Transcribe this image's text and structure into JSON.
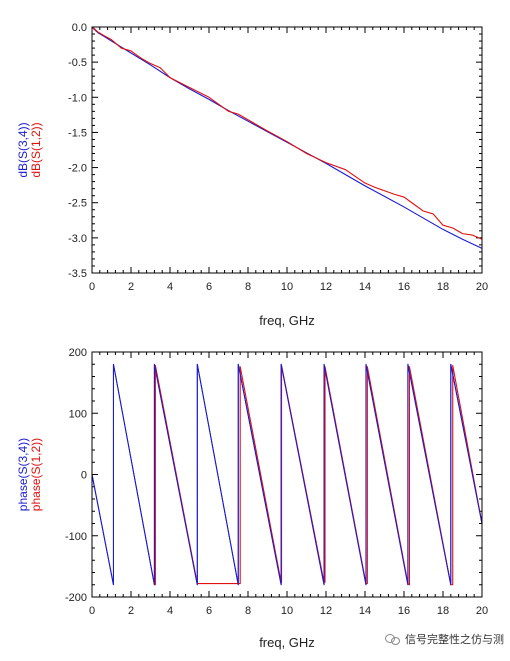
{
  "watermark": "信号完整性之仿与测",
  "colors": {
    "blue": "#1a1ad0",
    "red": "#e01010",
    "axis": "#000000"
  },
  "chart_data": [
    {
      "type": "line",
      "xlabel": "freq, GHz",
      "ylabel_parts": [
        "dB(S(3,4))",
        "dB(S(1,2))"
      ],
      "xlim": [
        0,
        20
      ],
      "ylim": [
        -3.5,
        0.0
      ],
      "xticks": [
        0,
        2,
        4,
        6,
        8,
        10,
        12,
        14,
        16,
        18,
        20
      ],
      "yticks": [
        0.0,
        -0.5,
        -1.0,
        -1.5,
        -2.0,
        -2.5,
        -3.0,
        -3.5
      ],
      "ytick_labels": [
        "0.0",
        "-0.5",
        "-1.0",
        "-1.5",
        "-2.0",
        "-2.5",
        "-3.0",
        "-3.5"
      ],
      "series": [
        {
          "name": "dB(S(3,4))",
          "color": "#1a1ad0",
          "x": [
            0,
            0.1,
            0.3,
            0.6,
            1,
            2,
            3,
            4,
            5,
            6,
            7,
            8,
            9,
            10,
            11,
            12,
            13,
            14,
            15,
            16,
            17,
            18,
            19,
            20
          ],
          "y": [
            0,
            -0.03,
            -0.08,
            -0.13,
            -0.2,
            -0.37,
            -0.54,
            -0.72,
            -0.88,
            -1.03,
            -1.19,
            -1.34,
            -1.49,
            -1.64,
            -1.79,
            -1.94,
            -2.1,
            -2.26,
            -2.41,
            -2.56,
            -2.72,
            -2.88,
            -3.02,
            -3.15
          ]
        },
        {
          "name": "dB(S(1,2))",
          "color": "#e01010",
          "x": [
            0,
            0.1,
            0.3,
            0.6,
            1,
            1.5,
            2,
            2.5,
            3,
            3.5,
            4,
            5,
            6,
            7,
            7.5,
            8,
            9,
            10,
            11,
            12,
            13,
            14,
            14.5,
            15,
            15.5,
            16,
            16.5,
            17,
            17.5,
            18,
            18.5,
            19,
            19.5,
            20
          ],
          "y": [
            0,
            -0.02,
            -0.07,
            -0.12,
            -0.18,
            -0.3,
            -0.34,
            -0.44,
            -0.52,
            -0.58,
            -0.72,
            -0.86,
            -1.0,
            -1.2,
            -1.24,
            -1.32,
            -1.48,
            -1.63,
            -1.8,
            -1.93,
            -2.03,
            -2.22,
            -2.28,
            -2.33,
            -2.38,
            -2.42,
            -2.52,
            -2.62,
            -2.66,
            -2.82,
            -2.86,
            -2.94,
            -2.96,
            -3.02
          ]
        }
      ]
    },
    {
      "type": "line",
      "xlabel": "freq, GHz",
      "ylabel_parts": [
        "phase(S(3,4))",
        "phase(S(1,2))"
      ],
      "xlim": [
        0,
        20
      ],
      "ylim": [
        -200,
        200
      ],
      "xticks": [
        0,
        2,
        4,
        6,
        8,
        10,
        12,
        14,
        16,
        18,
        20
      ],
      "yticks": [
        200,
        100,
        0,
        -100,
        -200
      ],
      "ytick_labels": [
        "200",
        "100",
        "0",
        "-100",
        "-200"
      ],
      "series": [
        {
          "name": "phase(S(3,4))",
          "color": "#1a1ad0",
          "x": [
            0,
            1.1,
            1.1,
            3.2,
            3.2,
            5.4,
            5.4,
            7.5,
            7.5,
            9.7,
            9.7,
            11.9,
            11.9,
            14.05,
            14.05,
            16.2,
            16.2,
            18.4,
            18.4,
            20
          ],
          "y": [
            0,
            -180,
            180,
            -180,
            180,
            -180,
            180,
            -180,
            180,
            -180,
            180,
            -180,
            180,
            -180,
            180,
            -180,
            180,
            -180,
            180,
            -80
          ]
        },
        {
          "name": "phase(S(1,2))",
          "color": "#e01010",
          "x": [
            3.2,
            3.25,
            3.25,
            5.4,
            7.5,
            7.6,
            7.6,
            9.7,
            9.72,
            9.72,
            11.9,
            11.95,
            11.95,
            14.05,
            14.12,
            14.12,
            16.2,
            16.28,
            16.28,
            18.4,
            18.5,
            18.5,
            20
          ],
          "y": [
            -180,
            -180,
            178,
            -178,
            -178,
            -178,
            176,
            -176,
            -176,
            178,
            -176,
            -176,
            176,
            -178,
            -178,
            176,
            -178,
            -180,
            176,
            -180,
            -180,
            178,
            -80
          ]
        }
      ]
    }
  ]
}
